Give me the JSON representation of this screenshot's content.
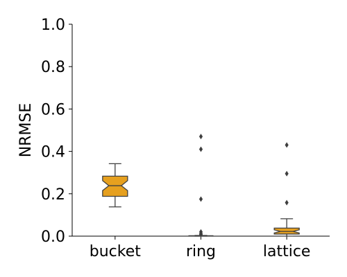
{
  "chart_data": {
    "type": "box",
    "ylabel": "NRMSE",
    "xlabel": "",
    "ylim": [
      0.0,
      1.0
    ],
    "yticks": [
      "0.0",
      "0.2",
      "0.4",
      "0.6",
      "0.8",
      "1.0"
    ],
    "categories": [
      "bucket",
      "ring",
      "lattice"
    ],
    "box_color": "#e6a01f",
    "boxes": [
      {
        "category": "bucket",
        "whisker_low": 0.138,
        "q1": 0.188,
        "notch_low": 0.215,
        "median": 0.238,
        "notch_high": 0.262,
        "q3": 0.283,
        "whisker_high": 0.342,
        "outliers": []
      },
      {
        "category": "ring",
        "whisker_low": 0.0,
        "q1": 0.0,
        "notch_low": 0.0,
        "median": 0.001,
        "notch_high": 0.002,
        "q3": 0.002,
        "whisker_high": 0.003,
        "outliers": [
          0.47,
          0.41,
          0.175,
          0.02,
          0.012,
          0.008
        ]
      },
      {
        "category": "lattice",
        "whisker_low": 0.0,
        "q1": 0.01,
        "notch_low": 0.015,
        "median": 0.022,
        "notch_high": 0.03,
        "q3": 0.038,
        "whisker_high": 0.082,
        "outliers": [
          0.43,
          0.295,
          0.158
        ]
      }
    ]
  }
}
